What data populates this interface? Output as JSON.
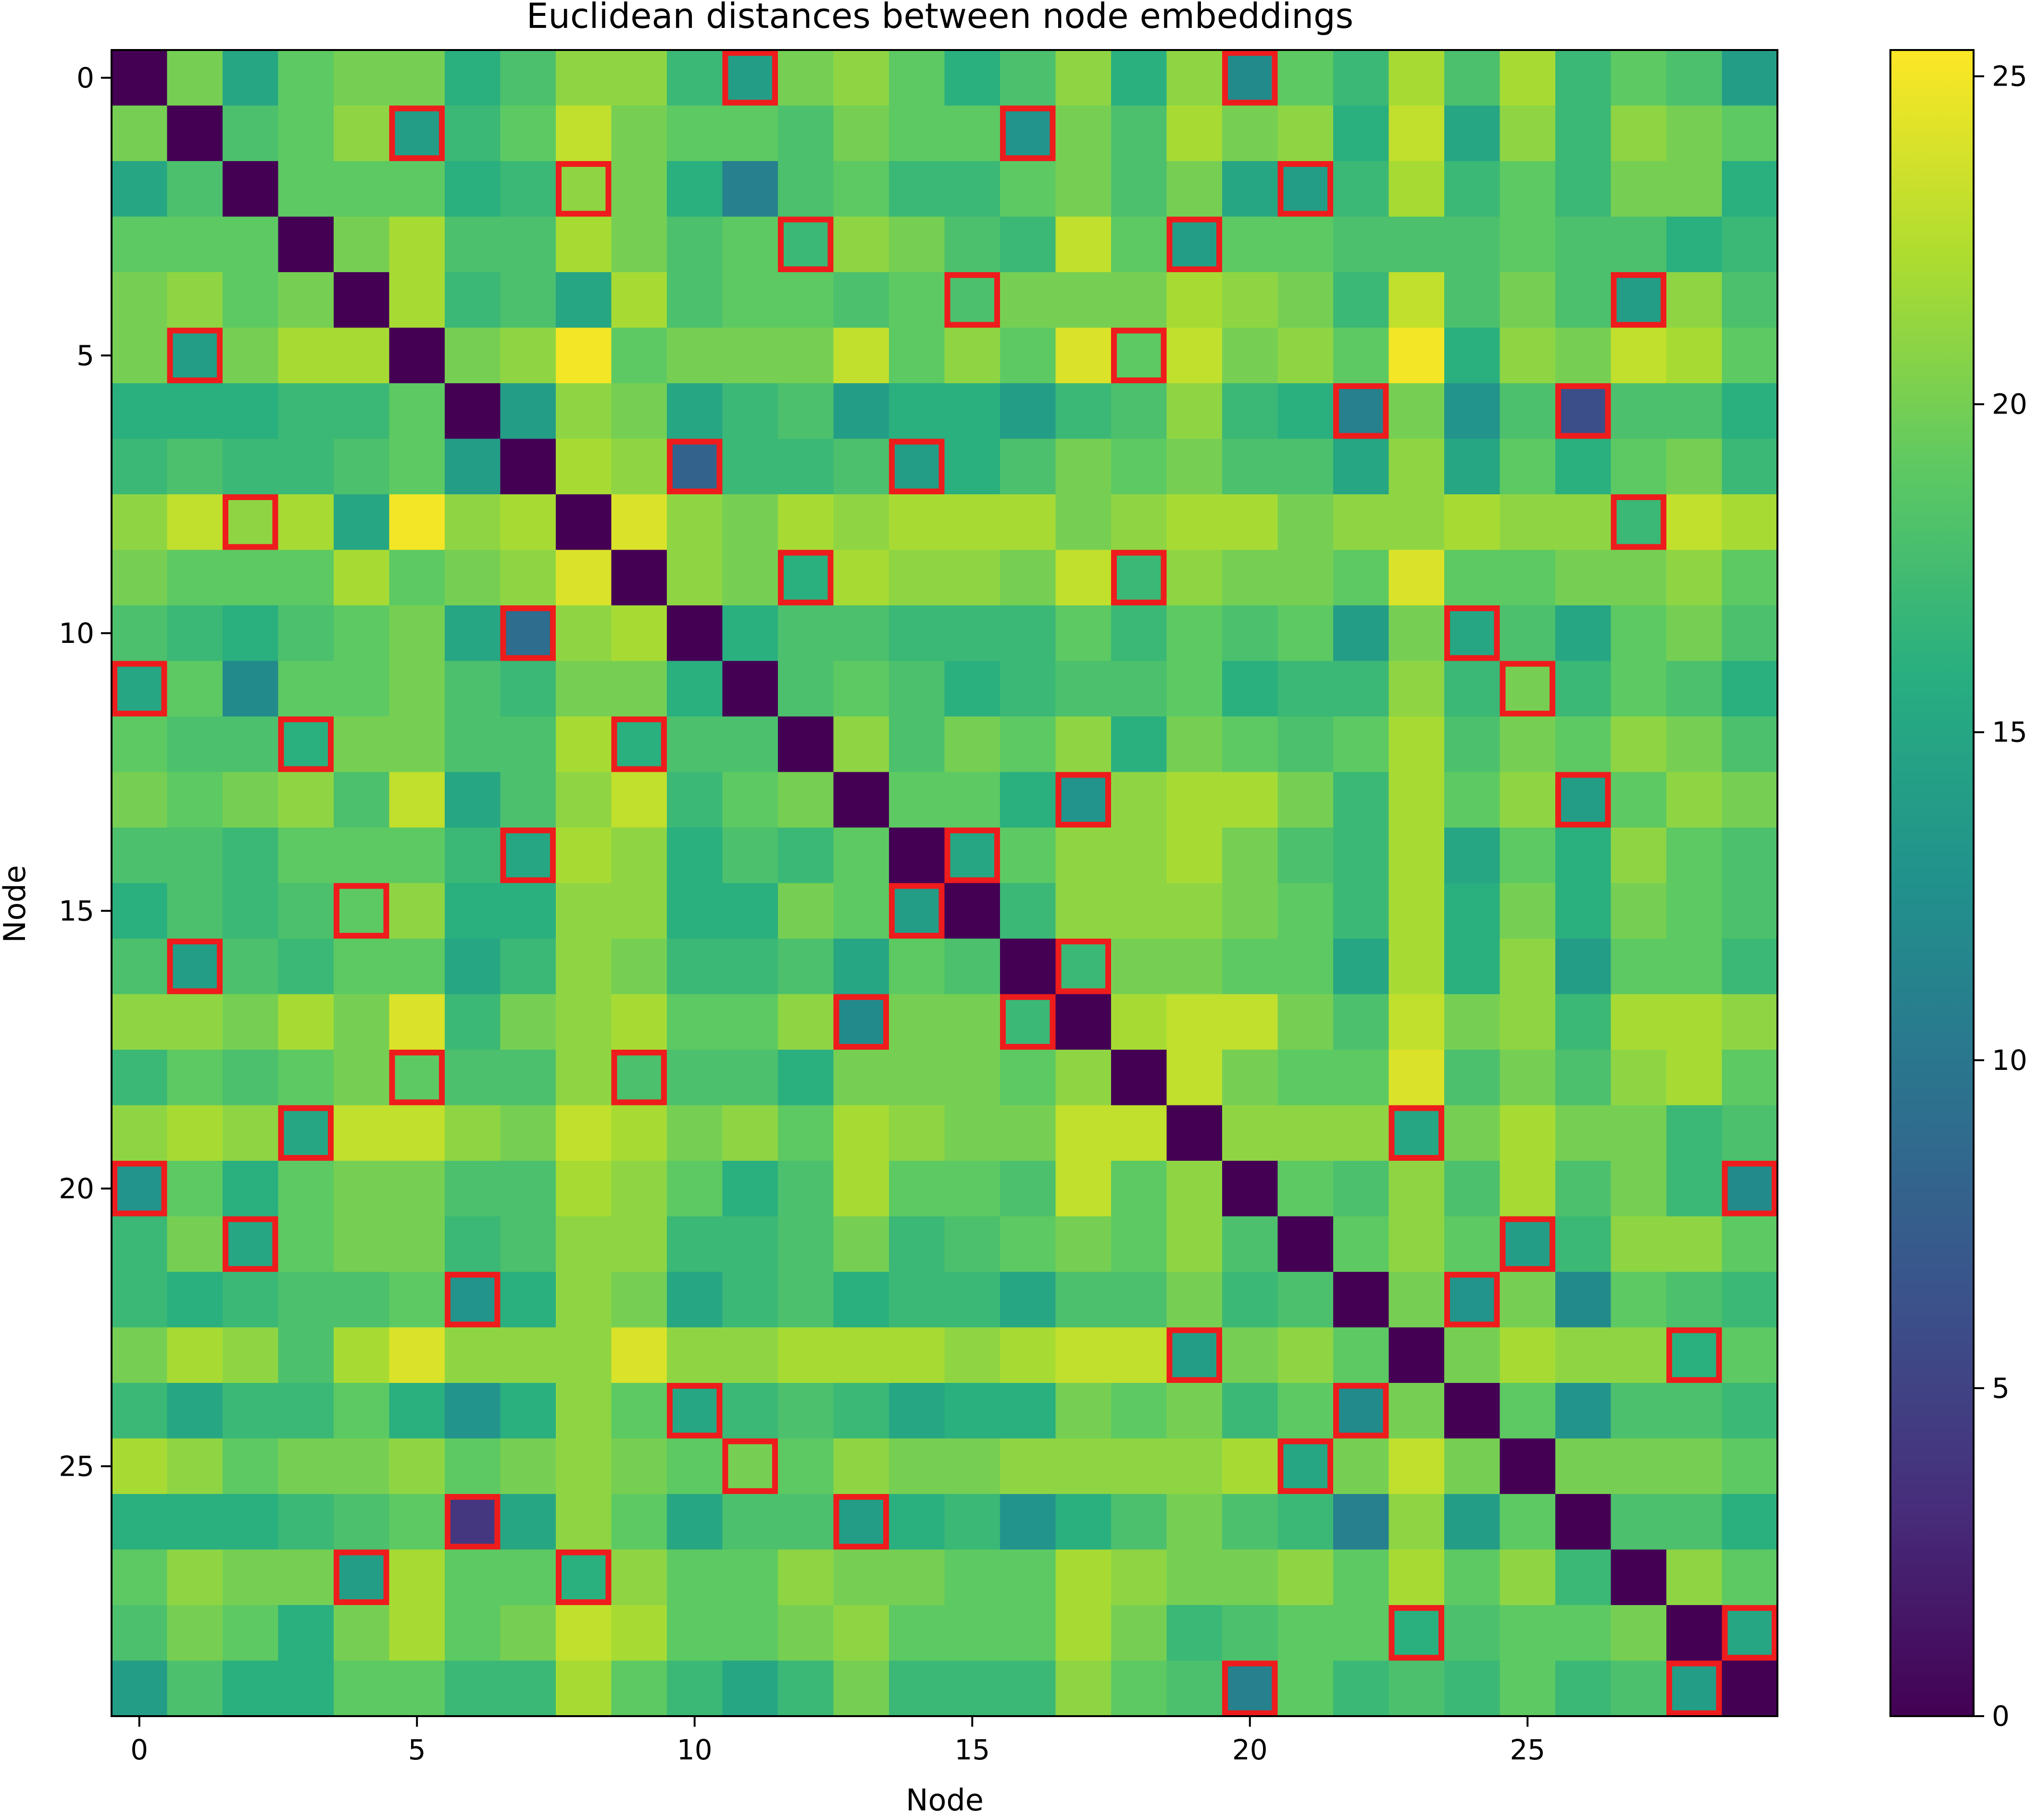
{
  "chart_data": {
    "type": "heatmap",
    "title": "Euclidean distances between node embeddings",
    "xlabel": "Node",
    "ylabel": "Node",
    "n_nodes": 30,
    "colormap": "viridis",
    "colorbar": {
      "range": [
        0,
        25.4
      ],
      "ticks": [
        0,
        5,
        10,
        15,
        20,
        25
      ]
    },
    "x_ticks": [
      0,
      5,
      10,
      15,
      20,
      25
    ],
    "y_ticks": [
      0,
      5,
      10,
      15,
      20,
      25
    ],
    "highlight_color": "#ee1c1c",
    "highlighted_cells": [
      [
        0,
        11
      ],
      [
        0,
        20
      ],
      [
        1,
        5
      ],
      [
        1,
        16
      ],
      [
        2,
        8
      ],
      [
        2,
        21
      ],
      [
        3,
        12
      ],
      [
        3,
        19
      ],
      [
        4,
        15
      ],
      [
        4,
        27
      ],
      [
        5,
        1
      ],
      [
        5,
        18
      ],
      [
        6,
        22
      ],
      [
        6,
        26
      ],
      [
        7,
        10
      ],
      [
        7,
        14
      ],
      [
        8,
        2
      ],
      [
        8,
        27
      ],
      [
        9,
        12
      ],
      [
        9,
        18
      ],
      [
        10,
        7
      ],
      [
        10,
        24
      ],
      [
        11,
        0
      ],
      [
        11,
        25
      ],
      [
        12,
        3
      ],
      [
        12,
        9
      ],
      [
        13,
        17
      ],
      [
        13,
        26
      ],
      [
        14,
        7
      ],
      [
        14,
        15
      ],
      [
        15,
        4
      ],
      [
        15,
        14
      ],
      [
        16,
        1
      ],
      [
        16,
        17
      ],
      [
        17,
        13
      ],
      [
        17,
        16
      ],
      [
        18,
        5
      ],
      [
        18,
        9
      ],
      [
        19,
        3
      ],
      [
        19,
        23
      ],
      [
        20,
        0
      ],
      [
        20,
        29
      ],
      [
        21,
        2
      ],
      [
        21,
        25
      ],
      [
        22,
        6
      ],
      [
        22,
        24
      ],
      [
        23,
        19
      ],
      [
        23,
        28
      ],
      [
        24,
        10
      ],
      [
        24,
        22
      ],
      [
        25,
        11
      ],
      [
        25,
        21
      ],
      [
        26,
        6
      ],
      [
        26,
        13
      ],
      [
        27,
        4
      ],
      [
        27,
        8
      ],
      [
        28,
        23
      ],
      [
        28,
        29
      ],
      [
        29,
        20
      ],
      [
        29,
        28
      ]
    ],
    "values": [
      [
        0,
        20,
        15,
        19,
        20,
        20,
        16,
        18,
        21,
        21,
        17,
        14,
        20,
        21,
        19,
        16,
        18,
        21,
        16,
        21,
        12,
        19,
        17,
        22,
        18,
        22,
        17,
        19,
        18,
        14
      ],
      [
        20,
        0,
        18,
        19,
        21,
        14,
        17,
        19,
        23,
        20,
        19,
        19,
        18,
        20,
        19,
        19,
        13,
        20,
        18,
        22,
        20,
        21,
        16,
        23,
        15,
        21,
        17,
        21,
        20,
        19
      ],
      [
        15,
        18,
        0,
        19,
        19,
        19,
        16,
        17,
        21,
        20,
        16,
        11,
        18,
        19,
        17,
        17,
        19,
        20,
        18,
        20,
        15,
        14,
        17,
        22,
        17,
        19,
        17,
        20,
        20,
        16
      ],
      [
        19,
        19,
        19,
        0,
        20,
        22,
        18,
        18,
        22,
        20,
        18,
        19,
        17,
        21,
        20,
        18,
        17,
        23,
        19,
        14,
        19,
        19,
        18,
        18,
        18,
        19,
        18,
        18,
        16,
        17
      ],
      [
        20,
        21,
        19,
        20,
        0,
        22,
        17,
        18,
        15,
        22,
        18,
        19,
        19,
        18,
        19,
        18,
        20,
        20,
        20,
        22,
        21,
        20,
        17,
        23,
        18,
        20,
        18,
        14,
        21,
        18
      ],
      [
        20,
        14,
        20,
        22,
        22,
        0,
        20,
        21,
        25,
        19,
        20,
        20,
        20,
        23,
        19,
        21,
        19,
        24,
        19,
        23,
        20,
        21,
        19,
        25,
        16,
        21,
        20,
        23,
        22,
        19
      ],
      [
        16,
        16,
        16,
        17,
        17,
        19,
        0,
        14,
        21,
        20,
        15,
        17,
        18,
        14,
        16,
        16,
        14,
        17,
        18,
        21,
        17,
        16,
        11,
        20,
        13,
        18,
        6,
        18,
        18,
        16
      ],
      [
        17,
        18,
        17,
        17,
        18,
        19,
        14,
        0,
        22,
        21,
        8,
        17,
        17,
        18,
        14,
        16,
        18,
        20,
        19,
        20,
        18,
        18,
        15,
        21,
        15,
        19,
        16,
        19,
        20,
        17
      ],
      [
        21,
        23,
        21,
        22,
        15,
        25,
        21,
        22,
        0,
        24,
        21,
        20,
        22,
        21,
        22,
        22,
        22,
        20,
        21,
        22,
        22,
        20,
        21,
        21,
        22,
        21,
        21,
        17,
        23,
        22
      ],
      [
        20,
        19,
        19,
        19,
        22,
        19,
        20,
        21,
        24,
        0,
        21,
        20,
        16,
        22,
        21,
        21,
        20,
        23,
        17,
        21,
        20,
        20,
        19,
        24,
        19,
        19,
        20,
        20,
        21,
        19
      ],
      [
        18,
        17,
        16,
        18,
        19,
        20,
        15,
        9,
        21,
        22,
        0,
        16,
        18,
        18,
        17,
        17,
        17,
        19,
        17,
        19,
        18,
        19,
        14,
        20,
        15,
        18,
        15,
        19,
        20,
        18
      ],
      [
        15,
        19,
        12,
        19,
        19,
        20,
        18,
        17,
        20,
        20,
        16,
        0,
        18,
        19,
        18,
        16,
        17,
        18,
        18,
        19,
        16,
        17,
        17,
        21,
        17,
        20,
        17,
        19,
        18,
        16
      ],
      [
        19,
        18,
        18,
        16,
        20,
        20,
        18,
        18,
        22,
        16,
        18,
        18,
        0,
        21,
        18,
        20,
        19,
        21,
        16,
        20,
        19,
        18,
        19,
        22,
        18,
        20,
        19,
        21,
        20,
        18
      ],
      [
        20,
        19,
        20,
        21,
        18,
        23,
        15,
        18,
        21,
        23,
        17,
        19,
        20,
        0,
        19,
        19,
        16,
        13,
        21,
        22,
        22,
        20,
        17,
        22,
        19,
        21,
        14,
        19,
        21,
        20
      ],
      [
        18,
        18,
        17,
        19,
        19,
        19,
        17,
        15,
        22,
        21,
        16,
        18,
        17,
        19,
        0,
        15,
        19,
        21,
        21,
        22,
        20,
        18,
        17,
        22,
        15,
        19,
        16,
        21,
        19,
        18
      ],
      [
        16,
        18,
        17,
        18,
        19,
        21,
        16,
        16,
        21,
        21,
        16,
        16,
        20,
        19,
        14,
        0,
        17,
        21,
        21,
        21,
        20,
        19,
        17,
        22,
        16,
        20,
        16,
        20,
        19,
        18
      ],
      [
        18,
        14,
        18,
        17,
        19,
        19,
        15,
        17,
        21,
        20,
        17,
        17,
        18,
        15,
        19,
        18,
        0,
        17,
        20,
        20,
        19,
        19,
        15,
        22,
        16,
        21,
        14,
        19,
        19,
        17
      ],
      [
        21,
        21,
        20,
        22,
        20,
        24,
        17,
        20,
        21,
        22,
        19,
        19,
        21,
        12,
        20,
        20,
        17,
        0,
        22,
        23,
        23,
        20,
        18,
        23,
        20,
        21,
        17,
        22,
        22,
        21
      ],
      [
        17,
        19,
        18,
        19,
        20,
        19,
        18,
        18,
        21,
        18,
        18,
        18,
        16,
        20,
        20,
        20,
        19,
        21,
        0,
        23,
        20,
        19,
        19,
        24,
        18,
        20,
        18,
        21,
        22,
        19
      ],
      [
        21,
        22,
        21,
        15,
        23,
        23,
        21,
        20,
        23,
        22,
        20,
        21,
        19,
        22,
        21,
        20,
        20,
        23,
        23,
        0,
        21,
        21,
        21,
        15,
        20,
        22,
        20,
        20,
        17,
        18
      ],
      [
        13,
        19,
        16,
        19,
        20,
        20,
        18,
        18,
        22,
        21,
        19,
        16,
        18,
        22,
        19,
        19,
        18,
        23,
        19,
        21,
        0,
        19,
        18,
        21,
        18,
        22,
        18,
        20,
        17,
        12
      ],
      [
        17,
        20,
        15,
        19,
        20,
        20,
        17,
        18,
        21,
        21,
        17,
        17,
        18,
        20,
        17,
        18,
        19,
        20,
        19,
        21,
        18,
        0,
        19,
        21,
        19,
        14,
        17,
        21,
        21,
        19
      ],
      [
        17,
        16,
        17,
        18,
        18,
        19,
        13,
        16,
        21,
        20,
        15,
        17,
        18,
        16,
        17,
        17,
        15,
        18,
        18,
        20,
        17,
        18,
        0,
        20,
        13,
        20,
        12,
        19,
        18,
        17
      ],
      [
        20,
        22,
        21,
        18,
        22,
        24,
        21,
        21,
        21,
        24,
        21,
        21,
        22,
        22,
        22,
        21,
        22,
        23,
        23,
        14,
        20,
        21,
        19,
        0,
        20,
        22,
        21,
        21,
        16,
        19
      ],
      [
        17,
        15,
        17,
        17,
        19,
        16,
        13,
        16,
        21,
        19,
        15,
        17,
        18,
        17,
        15,
        16,
        16,
        20,
        19,
        20,
        17,
        19,
        12,
        20,
        0,
        19,
        13,
        18,
        18,
        17
      ],
      [
        22,
        21,
        19,
        20,
        20,
        21,
        19,
        20,
        21,
        20,
        19,
        20,
        19,
        21,
        20,
        20,
        21,
        21,
        21,
        21,
        22,
        15,
        20,
        23,
        20,
        0,
        20,
        20,
        20,
        19
      ],
      [
        16,
        16,
        16,
        17,
        18,
        19,
        4,
        15,
        21,
        19,
        15,
        18,
        18,
        14,
        16,
        17,
        13,
        16,
        18,
        20,
        18,
        17,
        11,
        21,
        14,
        19,
        0,
        18,
        18,
        16
      ],
      [
        19,
        21,
        20,
        20,
        14,
        22,
        19,
        19,
        16,
        21,
        19,
        19,
        21,
        20,
        20,
        19,
        19,
        22,
        21,
        20,
        20,
        21,
        19,
        22,
        19,
        21,
        17,
        0,
        21,
        19
      ],
      [
        18,
        20,
        19,
        16,
        20,
        22,
        19,
        20,
        23,
        22,
        19,
        19,
        20,
        21,
        19,
        19,
        19,
        22,
        20,
        17,
        18,
        19,
        19,
        16,
        18,
        19,
        19,
        20,
        0,
        15
      ],
      [
        14,
        18,
        16,
        16,
        19,
        19,
        17,
        17,
        22,
        19,
        17,
        15,
        17,
        20,
        17,
        17,
        17,
        21,
        19,
        18,
        11,
        19,
        17,
        18,
        17,
        19,
        17,
        18,
        14,
        0
      ]
    ]
  }
}
